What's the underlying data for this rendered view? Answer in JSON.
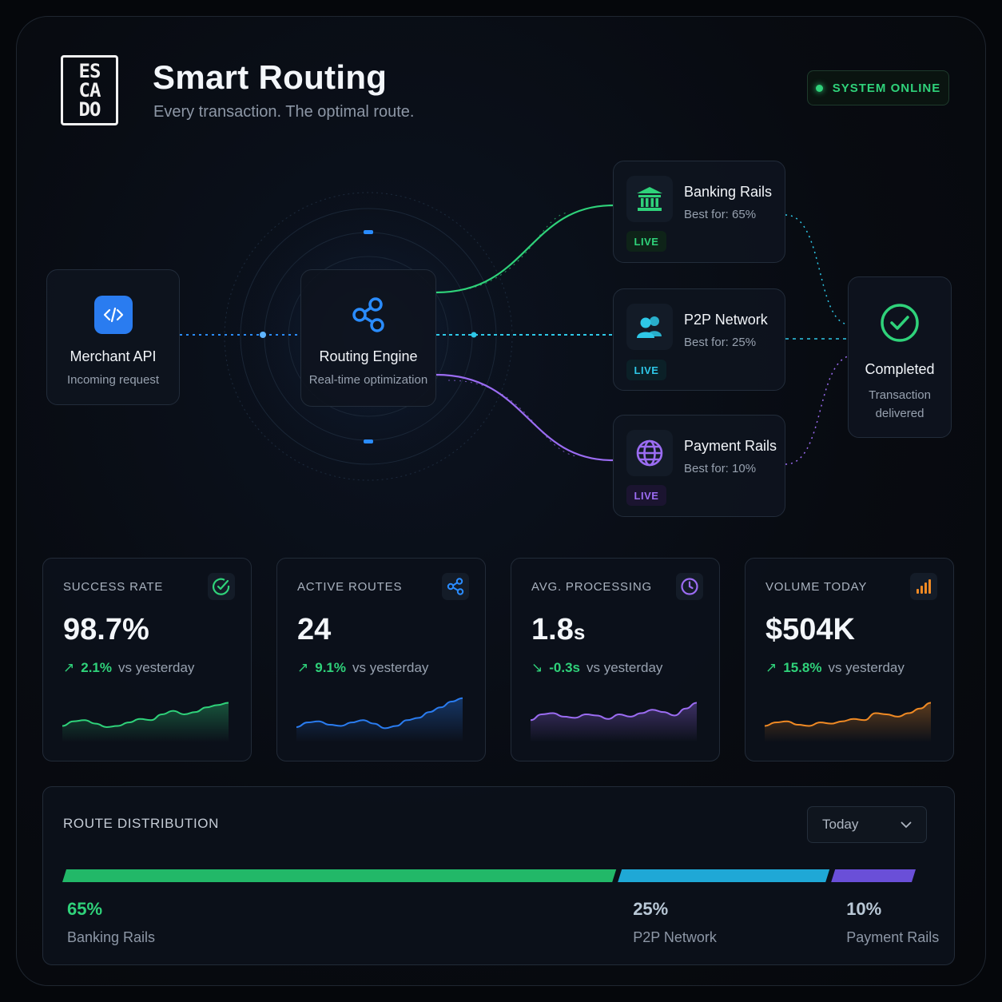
{
  "header": {
    "logo_text": "ESCADO",
    "title": "Smart Routing",
    "subtitle": "Every transaction. The optimal route.",
    "status": "SYSTEM ONLINE"
  },
  "flow": {
    "merchant": {
      "title": "Merchant API",
      "subtitle": "Incoming request",
      "icon": "code-icon"
    },
    "engine": {
      "title": "Routing Engine",
      "subtitle": "Real-time optimization",
      "icon": "share-nodes-icon"
    },
    "rails": [
      {
        "name": "Banking Rails",
        "best": "Best for: 65%",
        "live": "LIVE",
        "icon": "bank-icon",
        "color": "#2fd27a"
      },
      {
        "name": "P2P Network",
        "best": "Best for: 25%",
        "live": "LIVE",
        "icon": "users-icon",
        "color": "#2ec8e8"
      },
      {
        "name": "Payment Rails",
        "best": "Best for: 10%",
        "live": "LIVE",
        "icon": "globe-icon",
        "color": "#9b6cf2"
      }
    ],
    "completed": {
      "title": "Completed",
      "subtitle": "Transaction delivered",
      "icon": "check-circle-icon"
    }
  },
  "stats": [
    {
      "label": "SUCCESS RATE",
      "value": "98.7%",
      "unit": "",
      "delta": "2.1%",
      "direction": "up",
      "compare": "vs yesterday",
      "icon": "check-circle-icon",
      "color": "#2fd27a",
      "trend": [
        40,
        48,
        50,
        44,
        38,
        40,
        46,
        52,
        50,
        60,
        66,
        60,
        64,
        72,
        76,
        80
      ]
    },
    {
      "label": "ACTIVE ROUTES",
      "value": "24",
      "unit": "",
      "delta": "9.1%",
      "direction": "up",
      "compare": "vs yesterday",
      "icon": "share-nodes-icon",
      "color": "#2a7cf0",
      "trend": [
        38,
        46,
        48,
        42,
        40,
        46,
        50,
        44,
        36,
        40,
        50,
        54,
        64,
        72,
        82,
        88
      ]
    },
    {
      "label": "AVG. PROCESSING",
      "value": "1.8",
      "unit": "s",
      "delta": "-0.3s",
      "direction": "down",
      "compare": "vs yesterday",
      "icon": "clock-icon",
      "color": "#9b6cf2",
      "trend": [
        50,
        60,
        62,
        56,
        54,
        60,
        58,
        52,
        60,
        56,
        62,
        68,
        64,
        58,
        70,
        80
      ]
    },
    {
      "label": "VOLUME TODAY",
      "value": "$504K",
      "unit": "",
      "delta": "15.8%",
      "direction": "up",
      "compare": "vs yesterday",
      "icon": "bar-chart-icon",
      "color": "#f08a24",
      "trend": [
        40,
        46,
        48,
        42,
        40,
        46,
        44,
        48,
        52,
        50,
        62,
        60,
        56,
        62,
        70,
        80
      ]
    }
  ],
  "distribution": {
    "title": "ROUTE DISTRIBUTION",
    "period": "Today",
    "segments": [
      {
        "pct": "65%",
        "value": 65,
        "name": "Banking Rails",
        "color": "#22b868",
        "label_color": "#2fd27a"
      },
      {
        "pct": "25%",
        "value": 25,
        "name": "P2P Network",
        "color": "#1fa8d6",
        "label_color": "#b9c8d6"
      },
      {
        "pct": "10%",
        "value": 10,
        "name": "Payment Rails",
        "color": "#6a4fd8",
        "label_color": "#b9c8d6"
      }
    ]
  }
}
